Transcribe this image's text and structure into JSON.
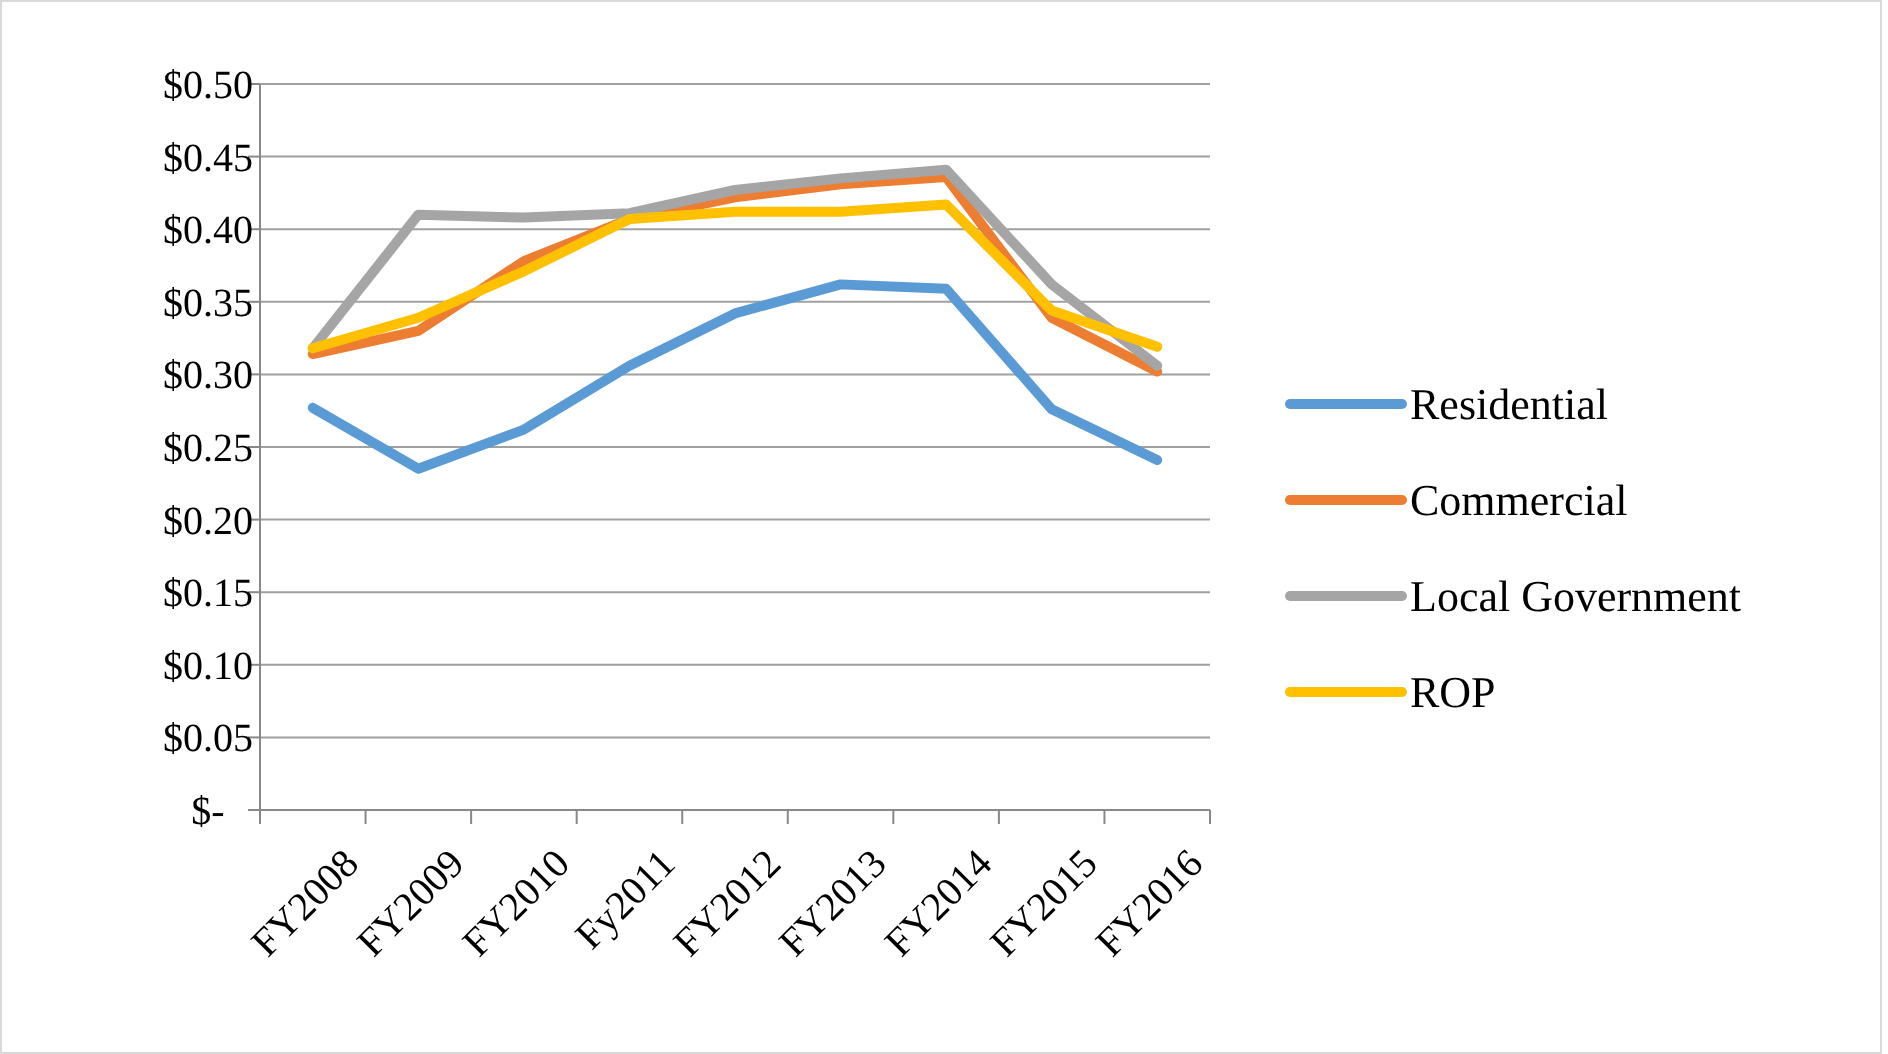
{
  "chart_data": {
    "type": "line",
    "categories": [
      "FY2008",
      "FY2009",
      "FY2010",
      "Fy2011",
      "FY2012",
      "FY2013",
      "FY2014",
      "FY2015",
      "FY2016"
    ],
    "series": [
      {
        "name": "Residential",
        "color": "#5b9bd5",
        "values": [
          0.277,
          0.235,
          0.262,
          0.306,
          0.342,
          0.362,
          0.359,
          0.276,
          0.241
        ]
      },
      {
        "name": "Commercial",
        "color": "#ed7d31",
        "values": [
          0.314,
          0.33,
          0.378,
          0.407,
          0.422,
          0.431,
          0.436,
          0.339,
          0.302
        ]
      },
      {
        "name": "Local Government",
        "color": "#a5a5a5",
        "values": [
          0.318,
          0.41,
          0.408,
          0.411,
          0.427,
          0.435,
          0.441,
          0.362,
          0.306
        ]
      },
      {
        "name": "ROP",
        "color": "#ffc000",
        "values": [
          0.318,
          0.339,
          0.371,
          0.407,
          0.412,
          0.412,
          0.417,
          0.344,
          0.319
        ]
      }
    ],
    "ylim": [
      0,
      0.5
    ],
    "yticks": [
      {
        "value": 0,
        "label": "$-"
      },
      {
        "value": 0.05,
        "label": "$0.05"
      },
      {
        "value": 0.1,
        "label": "$0.10"
      },
      {
        "value": 0.15,
        "label": "$0.15"
      },
      {
        "value": 0.2,
        "label": "$0.20"
      },
      {
        "value": 0.25,
        "label": "$0.25"
      },
      {
        "value": 0.3,
        "label": "$0.30"
      },
      {
        "value": 0.35,
        "label": "$0.35"
      },
      {
        "value": 0.4,
        "label": "$0.40"
      },
      {
        "value": 0.45,
        "label": "$0.45"
      },
      {
        "value": 0.5,
        "label": "$0.50"
      }
    ],
    "grid": "y",
    "legend": "right",
    "marker": "none",
    "line_style": "solid"
  }
}
